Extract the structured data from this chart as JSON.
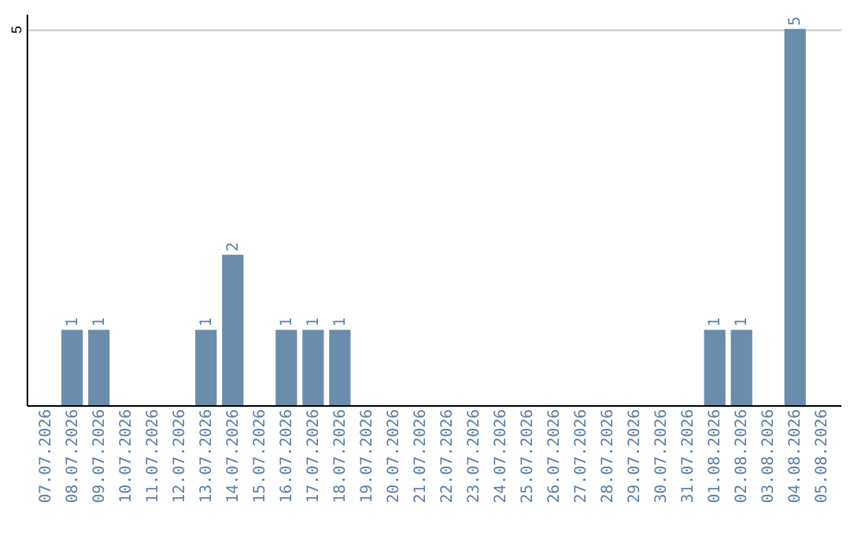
{
  "chart_data": {
    "type": "bar",
    "categories": [
      "07.07.2026",
      "08.07.2026",
      "09.07.2026",
      "10.07.2026",
      "11.07.2026",
      "12.07.2026",
      "13.07.2026",
      "14.07.2026",
      "15.07.2026",
      "16.07.2026",
      "17.07.2026",
      "18.07.2026",
      "19.07.2026",
      "20.07.2026",
      "21.07.2026",
      "22.07.2026",
      "23.07.2026",
      "24.07.2026",
      "25.07.2026",
      "26.07.2026",
      "27.07.2026",
      "28.07.2026",
      "29.07.2026",
      "30.07.2026",
      "31.07.2026",
      "01.08.2026",
      "02.08.2026",
      "03.08.2026",
      "04.08.2026",
      "05.08.2026"
    ],
    "values": [
      0,
      1,
      1,
      0,
      0,
      0,
      1,
      2,
      0,
      1,
      1,
      1,
      0,
      0,
      0,
      0,
      0,
      0,
      0,
      0,
      0,
      0,
      0,
      0,
      0,
      1,
      1,
      0,
      5,
      0
    ],
    "value_labels": [
      null,
      "1",
      "1",
      null,
      null,
      null,
      "1",
      "2",
      null,
      "1",
      "1",
      "1",
      null,
      null,
      null,
      null,
      null,
      null,
      null,
      null,
      null,
      null,
      null,
      null,
      null,
      "1",
      "1",
      null,
      "5",
      null
    ],
    "color": "#6b8cab",
    "ylim": [
      0,
      5.2
    ],
    "yticks": [
      5
    ],
    "grid": "y"
  }
}
